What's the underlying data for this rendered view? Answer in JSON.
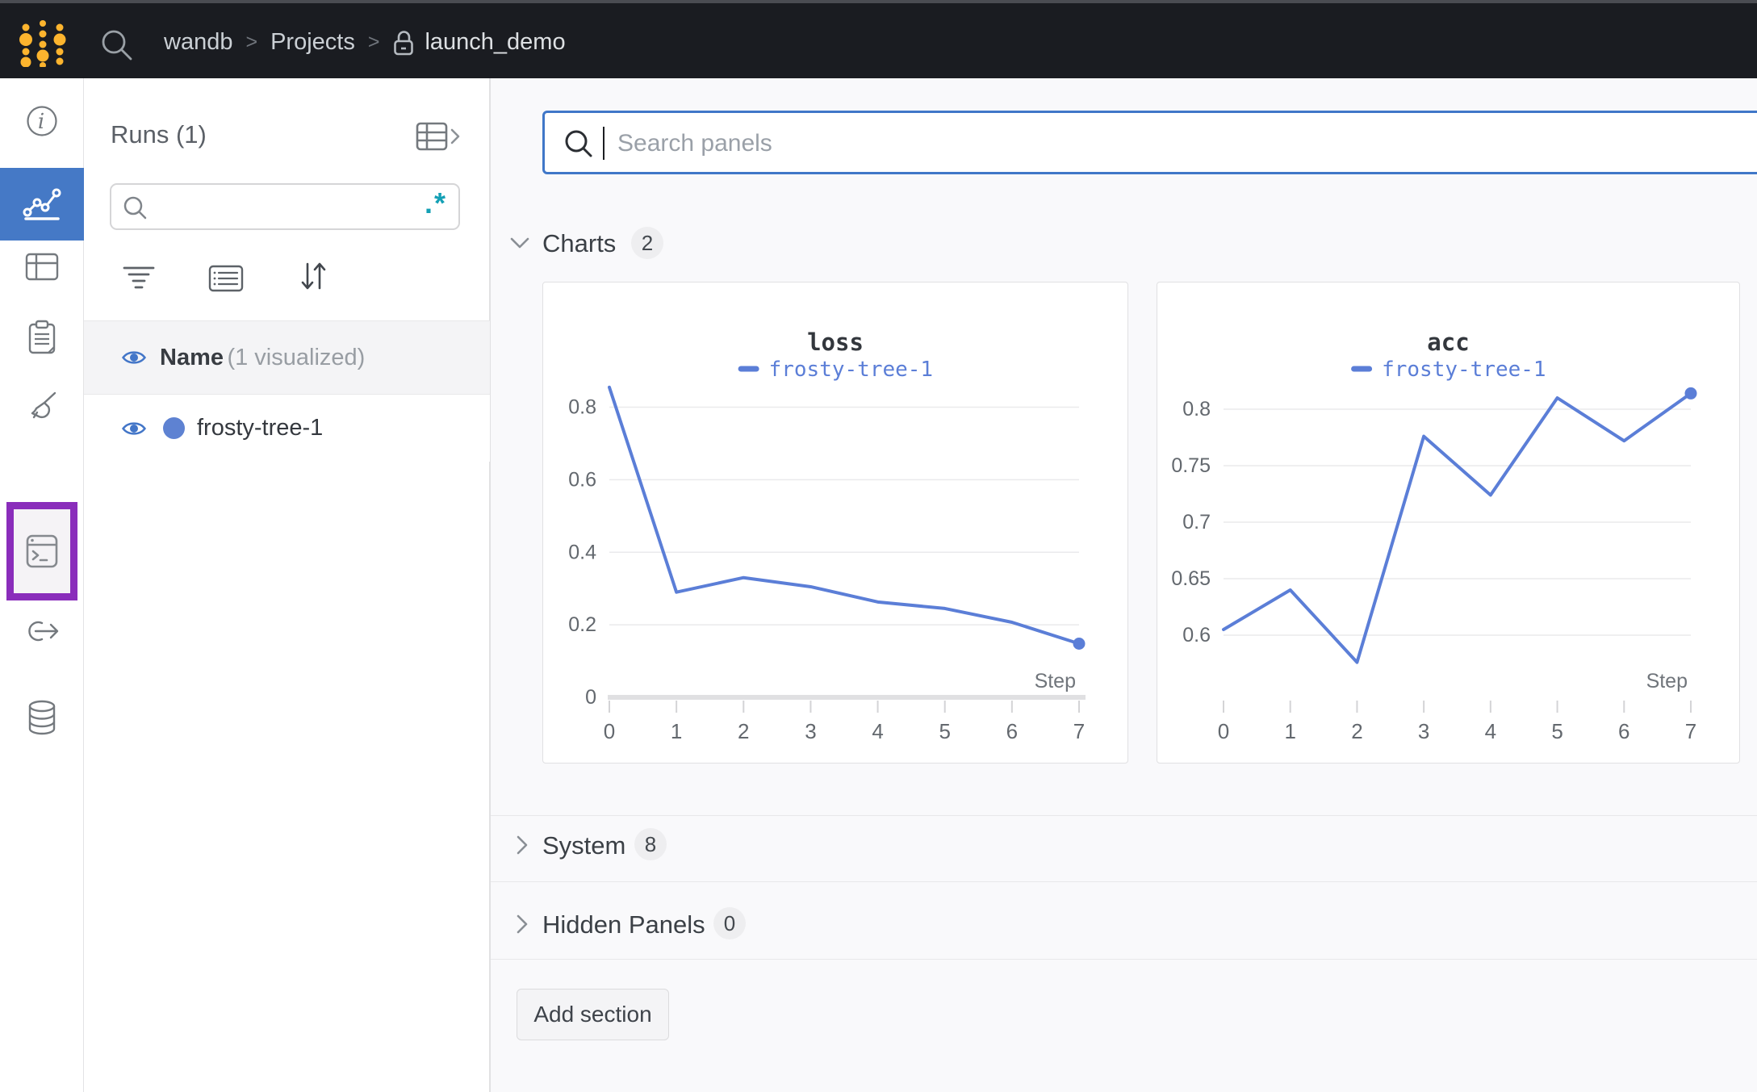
{
  "topbar": {
    "breadcrumb": [
      {
        "label": "wandb"
      },
      {
        "label": "Projects"
      },
      {
        "label": "launch_demo",
        "locked": true
      }
    ],
    "separator": ">"
  },
  "sidebar": {
    "tooltip": "Jobs",
    "items": [
      "info",
      "workspace-charts",
      "table",
      "logs",
      "sweeps",
      "jobs",
      "automations",
      "artifacts"
    ],
    "active_item": "workspace-charts",
    "highlighted_item": "jobs"
  },
  "runs_panel": {
    "title": "Runs (1)",
    "search": {
      "value": "",
      "regex_glyph": ".*"
    },
    "header": {
      "name": "Name",
      "note": "(1 visualized)"
    },
    "runs": [
      {
        "name": "frosty-tree-1",
        "dot_color": "#5e82d2"
      }
    ]
  },
  "main": {
    "panel_search": {
      "placeholder": "Search panels",
      "value": ""
    },
    "sections": {
      "charts": {
        "label": "Charts",
        "count": "2",
        "expanded": true
      },
      "system": {
        "label": "System",
        "count": "8",
        "expanded": false
      },
      "hidden": {
        "label": "Hidden Panels",
        "count": "0",
        "expanded": false
      }
    },
    "add_section_label": "Add section"
  },
  "chart_data": [
    {
      "type": "line",
      "title": "loss",
      "xlabel": "Step",
      "x": [
        0,
        1,
        2,
        3,
        4,
        5,
        6,
        7
      ],
      "series": [
        {
          "name": "frosty-tree-1",
          "color": "#5b7ed7",
          "values": [
            0.855,
            0.29,
            0.33,
            0.305,
            0.263,
            0.245,
            0.207,
            0.148
          ]
        }
      ],
      "yticks": [
        0,
        0.2,
        0.4,
        0.6,
        0.8
      ],
      "ytick_labels": [
        "0",
        "0.2",
        "0.4",
        "0.6",
        "0.8"
      ],
      "ylim": [
        0,
        0.888
      ],
      "xlim": [
        0,
        7
      ],
      "grid": "horizontal",
      "legend_position": "top",
      "zero_axis": true,
      "end_dot": true
    },
    {
      "type": "line",
      "title": "acc",
      "xlabel": "Step",
      "x": [
        0,
        1,
        2,
        3,
        4,
        5,
        6,
        7
      ],
      "series": [
        {
          "name": "frosty-tree-1",
          "color": "#5b7ed7",
          "values": [
            0.605,
            0.64,
            0.576,
            0.776,
            0.724,
            0.81,
            0.772,
            0.814
          ]
        }
      ],
      "yticks": [
        0.6,
        0.65,
        0.7,
        0.75,
        0.8
      ],
      "ytick_labels": [
        "0.6",
        "0.65",
        "0.7",
        "0.75",
        "0.8"
      ],
      "ylim": [
        0.545,
        0.83
      ],
      "xlim": [
        0,
        7
      ],
      "grid": "horizontal",
      "legend_position": "top",
      "zero_axis": false,
      "end_dot": true
    }
  ],
  "colors": {
    "accent_blue": "#4579c6",
    "chart_line": "#5b7ed7",
    "purple_highlight": "#8a2dbb",
    "regex_teal": "#14a0b5",
    "logo_yellow": "#fcb42e",
    "focus_border": "#4077c8"
  },
  "icons": {
    "search": "magnifier",
    "lock": "padlock",
    "sort": "down-up-arrows",
    "regex": ".*"
  }
}
